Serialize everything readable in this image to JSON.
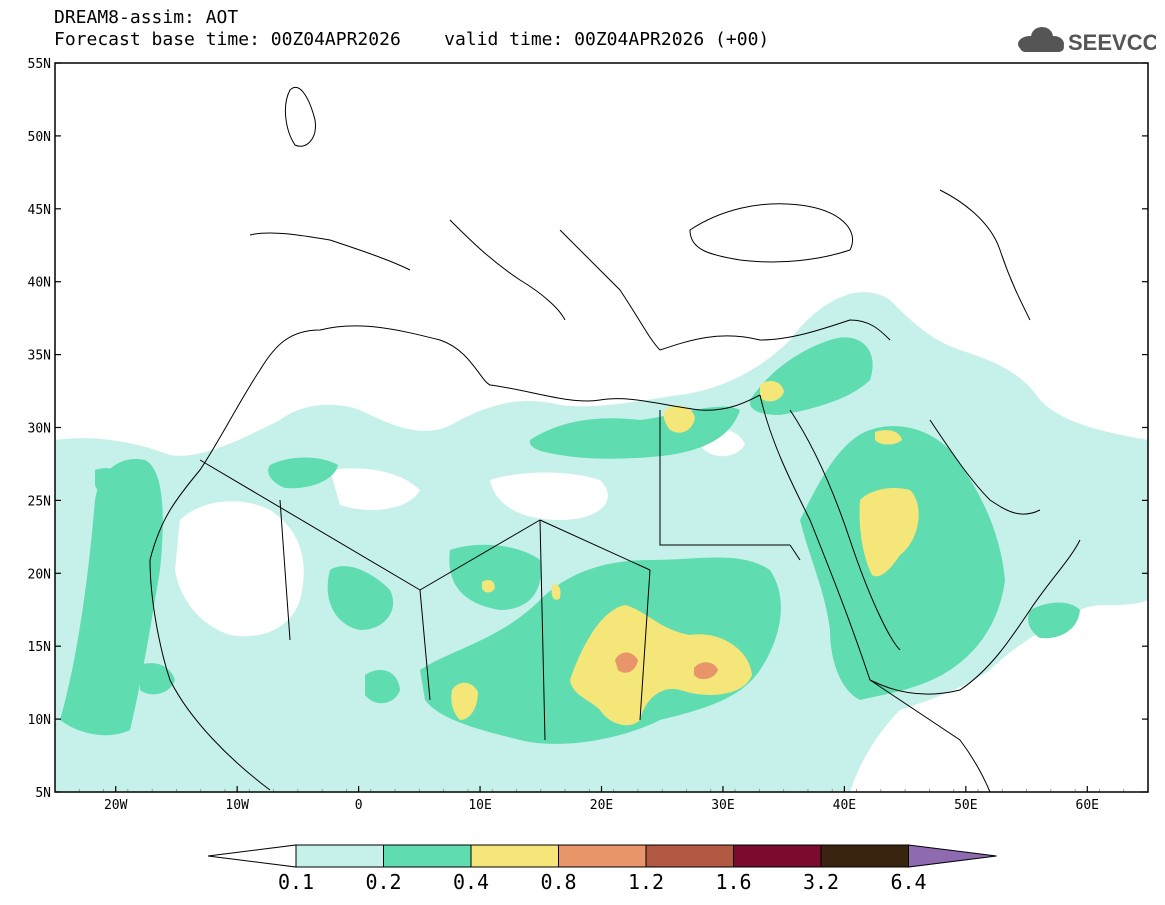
{
  "title": {
    "line1": "DREAM8-assim: AOT",
    "line2": "Forecast base time: 00Z04APR2026    valid time: 00Z04APR2026 (+00)"
  },
  "logo": {
    "text": "SEEVCCC",
    "icon": "cloud-icon"
  },
  "axes": {
    "lon_ticks": [
      "20W",
      "10W",
      "0",
      "10E",
      "20E",
      "30E",
      "40E",
      "50E",
      "60E"
    ],
    "lat_ticks": [
      "55N",
      "50N",
      "45N",
      "40N",
      "35N",
      "30N",
      "25N",
      "20N",
      "15N",
      "10N",
      "5N"
    ]
  },
  "colorbar": {
    "labels": [
      "0.1",
      "0.2",
      "0.4",
      "0.8",
      "1.2",
      "1.6",
      "3.2",
      "6.4"
    ],
    "colors": [
      "#ffffff",
      "#c6f0ea",
      "#5fdcb0",
      "#f5e67a",
      "#e8956a",
      "#b35842",
      "#7a0a2e",
      "#3a2410",
      "#8e6ab0"
    ]
  }
}
